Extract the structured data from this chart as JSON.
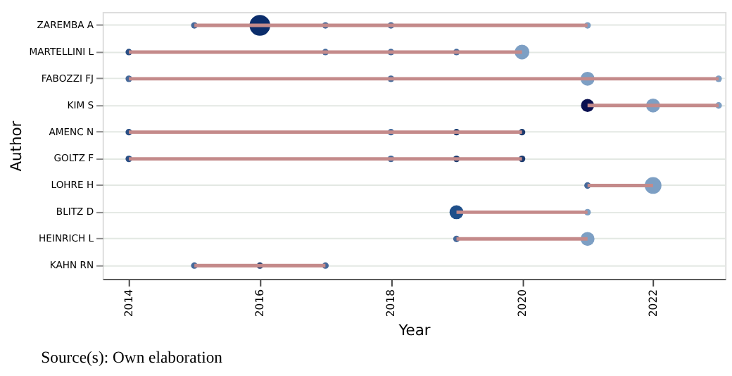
{
  "chart_data": {
    "type": "bubble",
    "orientation": "horizontal",
    "xlabel": "Year",
    "ylabel": "Author",
    "categories": [
      "ZAREMBA A",
      "MARTELLINI L",
      "FABOZZI FJ",
      "KIM S",
      "AMENC N",
      "GOLTZ F",
      "LOHRE H",
      "BLITZ D",
      "HEINRICH L",
      "KAHN RN"
    ],
    "xlim": [
      2013.6,
      2023.1
    ],
    "xticks": [
      2014,
      2016,
      2018,
      2020,
      2022
    ],
    "grid": "y",
    "annotations": [
      "Source(s): Own elaboration"
    ],
    "series": [
      {
        "type": "bar",
        "color": "#c48a8a",
        "base": [
          2015,
          2014,
          2014,
          2021,
          2014,
          2014,
          2021,
          2019,
          2019,
          2015
        ],
        "values": [
          6,
          6,
          9,
          2,
          6,
          6,
          1,
          2,
          2,
          2
        ]
      },
      {
        "values": [
          2015,
          2014,
          2014,
          2021,
          2014,
          2014,
          2021,
          2019,
          2019,
          2015
        ],
        "sizes": [
          0.1,
          0.1,
          0.1,
          0.4,
          0.1,
          0.1,
          0.1,
          0.45,
          0.1,
          0.1
        ],
        "colors": [
          "#46699a",
          "#2a4f85",
          "#46699a",
          "#0a1050",
          "#2a4f85",
          "#2a4f85",
          "#46699a",
          "#1f4f8a",
          "#46699a",
          "#46699a"
        ]
      },
      {
        "values": [
          2016,
          2017,
          2018,
          2022,
          2018,
          2018,
          2022,
          2021,
          2021,
          2016
        ],
        "sizes": [
          1,
          0.1,
          0.1,
          0.45,
          0.1,
          0.1,
          0.65,
          0.1,
          0.45,
          0.1
        ],
        "colors": [
          "#0b2d6b",
          "#46699a",
          "#46699a",
          "#7d9fc4",
          "#46699a",
          "#46699a",
          "#7d9fc4",
          "#7d9fc4",
          "#7d9fc4",
          "#1b3a6e"
        ]
      },
      {
        "values": [
          2017,
          2018,
          2021,
          2023,
          2019,
          2019,
          null,
          null,
          null,
          2017
        ],
        "sizes": [
          0.1,
          0.1,
          0.45,
          0.1,
          0.1,
          0.1,
          null,
          null,
          null,
          0.1
        ],
        "colors": [
          "#46699a",
          "#46699a",
          "#7d9fc4",
          "#7d9fc4",
          "#1b3a6e",
          "#1b3a6e",
          null,
          null,
          null,
          "#46699a"
        ]
      },
      {
        "values": [
          2018,
          2019,
          2023,
          null,
          2020,
          2020,
          null,
          null,
          null,
          null
        ],
        "sizes": [
          0.1,
          0.1,
          0.1,
          null,
          0.1,
          0.1,
          null,
          null,
          null,
          null
        ],
        "colors": [
          "#46699a",
          "#46699a",
          "#7d9fc4",
          null,
          "#1b3a6e",
          "#1b3a6e",
          null,
          null,
          null,
          null
        ]
      },
      {
        "values": [
          2021,
          2020,
          null,
          null,
          null,
          null,
          null,
          null,
          null,
          null
        ],
        "sizes": [
          0.1,
          0.5,
          null,
          null,
          null,
          null,
          null,
          null,
          null,
          null
        ],
        "colors": [
          "#7d9fc4",
          "#7d9fc4",
          null,
          null,
          null,
          null,
          null,
          null,
          null,
          null
        ]
      }
    ]
  }
}
